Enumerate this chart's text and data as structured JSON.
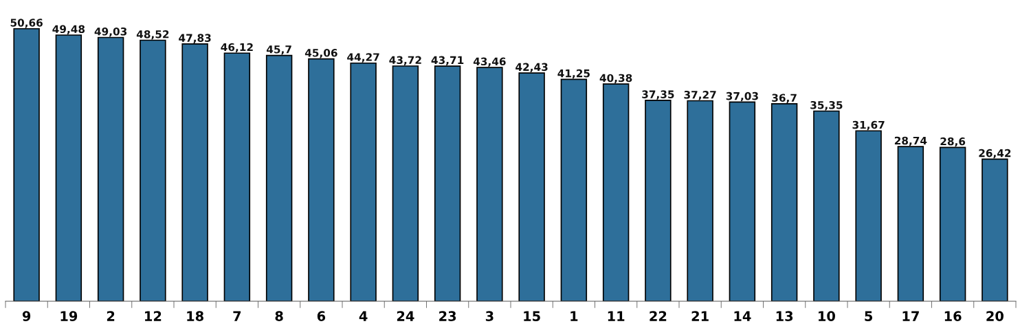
{
  "chart_data": {
    "type": "bar",
    "categories": [
      "9",
      "19",
      "2",
      "12",
      "18",
      "7",
      "8",
      "6",
      "4",
      "24",
      "23",
      "3",
      "15",
      "1",
      "11",
      "22",
      "21",
      "14",
      "13",
      "10",
      "5",
      "17",
      "16",
      "20"
    ],
    "values": [
      50.66,
      49.48,
      49.03,
      48.52,
      47.83,
      46.12,
      45.7,
      45.06,
      44.27,
      43.72,
      43.71,
      43.46,
      42.43,
      41.25,
      40.38,
      37.35,
      37.27,
      37.03,
      36.7,
      35.35,
      31.67,
      28.74,
      28.6,
      26.42
    ],
    "value_labels": [
      "50,66",
      "49,48",
      "49,03",
      "48,52",
      "47,83",
      "46,12",
      "45,7",
      "45,06",
      "44,27",
      "43,72",
      "43,71",
      "43,46",
      "42,43",
      "41,25",
      "40,38",
      "37,35",
      "37,27",
      "37,03",
      "36,7",
      "35,35",
      "31,67",
      "28,74",
      "28,6",
      "26,42"
    ],
    "color": "#2e6f9a",
    "grid": false,
    "legend": false
  }
}
